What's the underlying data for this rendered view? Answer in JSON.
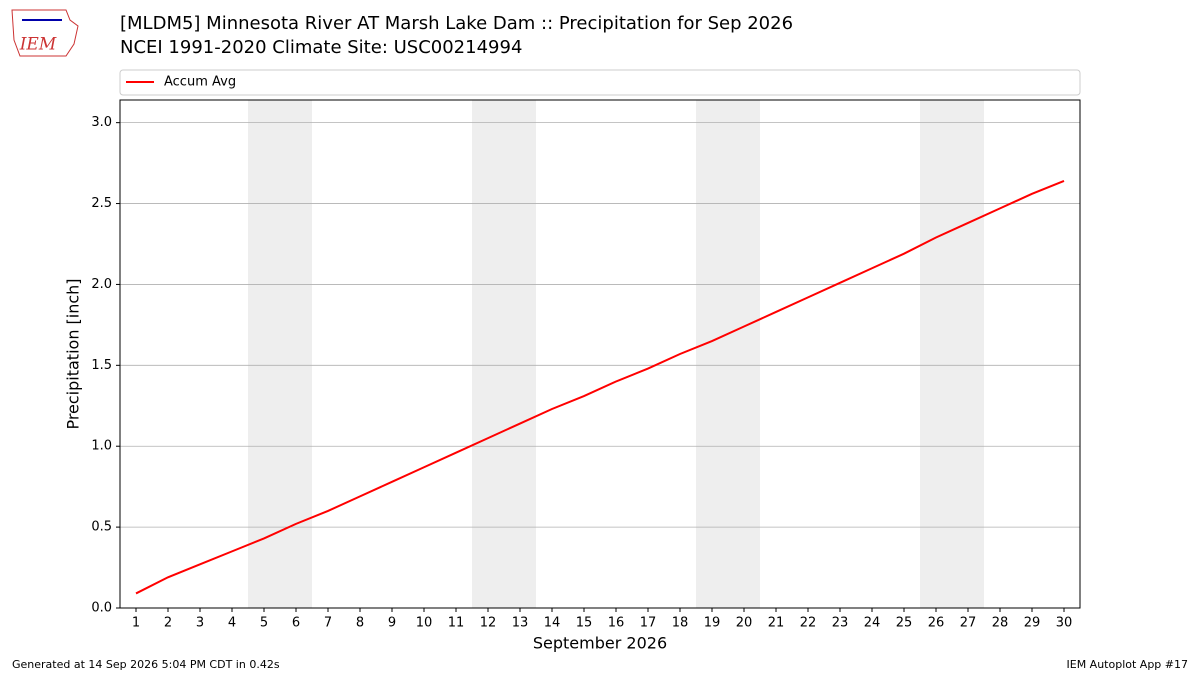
{
  "logo": "IEM",
  "chart_data": {
    "type": "line",
    "title": "[MLDM5] Minnesota River  AT Marsh Lake Dam :: Precipitation for Sep 2026",
    "subtitle": "NCEI 1991-2020 Climate Site: USC00214994",
    "xlabel": "September 2026",
    "ylabel": "Precipitation [inch]",
    "x": [
      1,
      2,
      3,
      4,
      5,
      6,
      7,
      8,
      9,
      10,
      11,
      12,
      13,
      14,
      15,
      16,
      17,
      18,
      19,
      20,
      21,
      22,
      23,
      24,
      25,
      26,
      27,
      28,
      29,
      30
    ],
    "series": [
      {
        "name": "Accum Avg",
        "color": "#ff0000",
        "values": [
          0.09,
          0.19,
          0.27,
          0.35,
          0.43,
          0.52,
          0.6,
          0.69,
          0.78,
          0.87,
          0.96,
          1.05,
          1.14,
          1.23,
          1.31,
          1.4,
          1.48,
          1.57,
          1.65,
          1.74,
          1.83,
          1.92,
          2.01,
          2.1,
          2.19,
          2.29,
          2.38,
          2.47,
          2.56,
          2.64
        ]
      }
    ],
    "xlim": [
      0.5,
      30.5
    ],
    "xticks": [
      1,
      2,
      3,
      4,
      5,
      6,
      7,
      8,
      9,
      10,
      11,
      12,
      13,
      14,
      15,
      16,
      17,
      18,
      19,
      20,
      21,
      22,
      23,
      24,
      25,
      26,
      27,
      28,
      29,
      30
    ],
    "ylim": [
      0,
      3.14
    ],
    "yticks": [
      {
        "value": 0,
        "label": "0.0"
      },
      {
        "value": 0.5,
        "label": "0.5"
      },
      {
        "value": 1,
        "label": "1.0"
      },
      {
        "value": 1.5,
        "label": "1.5"
      },
      {
        "value": 2,
        "label": "2.0"
      },
      {
        "value": 2.5,
        "label": "2.5"
      },
      {
        "value": 3,
        "label": "3.0"
      }
    ],
    "grid": true,
    "shaded_xspans": [
      [
        4.5,
        6.5
      ],
      [
        11.5,
        13.5
      ],
      [
        18.5,
        20.5
      ],
      [
        25.5,
        27.5
      ]
    ],
    "shade_color": "#eeeeee",
    "legend": "top"
  },
  "footer": {
    "left": "Generated at 14 Sep 2026 5:04 PM CDT in 0.42s",
    "right": "IEM Autoplot App #17"
  }
}
